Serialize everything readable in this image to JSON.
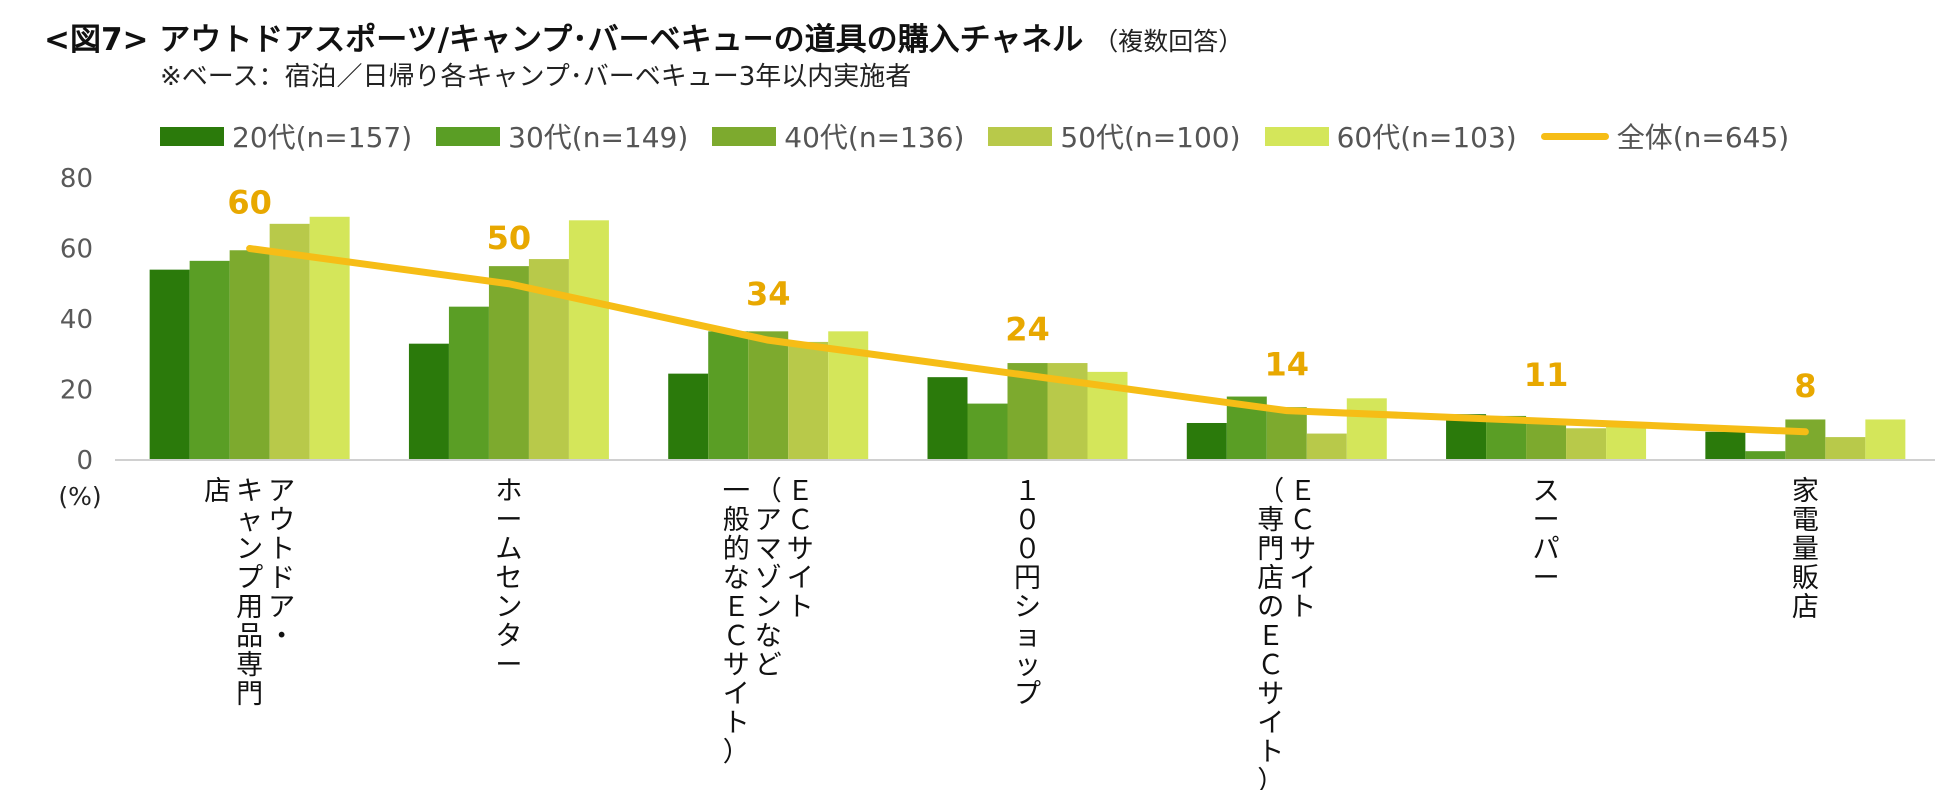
{
  "title": {
    "main": "<図7> アウトドアスポーツ/キャンプ･バーベキューの道具の購入チャネル",
    "sub": "（複数回答）"
  },
  "note": "※ベース：宿泊／日帰り各キャンプ･バーベキュー3年以内実施者",
  "colors": {
    "series": [
      "#2b7a0b",
      "#5a9e25",
      "#7daa2e",
      "#b8c94a",
      "#d4e65a"
    ],
    "line": "#f6bd16",
    "line_label": "#e8a800",
    "axis": "#d0d0d0",
    "tick": "#595959"
  },
  "chart_data": {
    "type": "bar",
    "title": "アウトドアスポーツ/キャンプ･バーベキューの道具の購入チャネル",
    "ylabel": "(%)",
    "ylim": [
      0,
      80
    ],
    "yticks": [
      0,
      20,
      40,
      60,
      80
    ],
    "legend_position": "top",
    "categories": [
      [
        "アウトドア・",
        "キャンプ用品専門",
        "店"
      ],
      [
        "ホームセンター"
      ],
      [
        "ＥＣサイト",
        "（アマゾンなど",
        "一般的なＥＣサイト）"
      ],
      [
        "１００円ショップ"
      ],
      [
        "ＥＣサイト",
        "（専門店のＥＣサイト）"
      ],
      [
        "スーパー"
      ],
      [
        "家電量販店"
      ]
    ],
    "series": [
      {
        "name": "20代(n=157)",
        "values": [
          54,
          33,
          24.5,
          23.5,
          10.5,
          13,
          8
        ]
      },
      {
        "name": "30代(n=149)",
        "values": [
          56.5,
          43.5,
          36.5,
          16,
          18,
          12.5,
          2.5
        ]
      },
      {
        "name": "40代(n=136)",
        "values": [
          59.5,
          55,
          36.5,
          27.5,
          15,
          10.5,
          11.5
        ]
      },
      {
        "name": "50代(n=100)",
        "values": [
          67,
          57,
          33.5,
          27.5,
          7.5,
          9,
          6.5
        ]
      },
      {
        "name": "60代(n=103)",
        "values": [
          69,
          68,
          36.5,
          25,
          17.5,
          9.5,
          11.5
        ]
      }
    ],
    "line": {
      "name": "全体(n=645)",
      "values": [
        60,
        50,
        34,
        24,
        14,
        11,
        8
      ]
    }
  }
}
